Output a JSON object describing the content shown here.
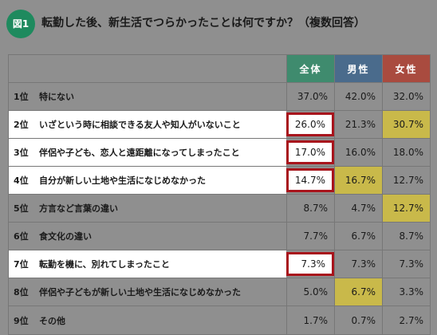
{
  "header": {
    "badge": "図1",
    "title": "転勤した後、新生活でつらかったことは何ですか？（複数回答）"
  },
  "table": {
    "columns": [
      "全体",
      "男性",
      "女性"
    ],
    "rows": [
      {
        "rank": "1位",
        "label": "特にない",
        "all": "37.0%",
        "male": "42.0%",
        "female": "32.0%"
      },
      {
        "rank": "2位",
        "label": "いざという時に相談できる友人や知人がいないこと",
        "all": "26.0%",
        "male": "21.3%",
        "female": "30.7%"
      },
      {
        "rank": "3位",
        "label": "伴侶や子ども、恋人と遠距離になってしまったこと",
        "all": "17.0%",
        "male": "16.0%",
        "female": "18.0%"
      },
      {
        "rank": "4位",
        "label": "自分が新しい土地や生活になじめなかった",
        "all": "14.7%",
        "male": "16.7%",
        "female": "12.7%"
      },
      {
        "rank": "5位",
        "label": "方言など言葉の違い",
        "all": "8.7%",
        "male": "4.7%",
        "female": "12.7%"
      },
      {
        "rank": "6位",
        "label": "食文化の違い",
        "all": "7.7%",
        "male": "6.7%",
        "female": "8.7%"
      },
      {
        "rank": "7位",
        "label": "転勤を機に、別れてしまったこと",
        "all": "7.3%",
        "male": "7.3%",
        "female": "7.3%"
      },
      {
        "rank": "8位",
        "label": "伴侶や子どもが新しい土地や生活になじめなかった",
        "all": "5.0%",
        "male": "6.7%",
        "female": "3.3%"
      },
      {
        "rank": "9位",
        "label": "その他",
        "all": "1.7%",
        "male": "0.7%",
        "female": "2.7%"
      }
    ]
  },
  "colors": {
    "highlight_box": "#a8141c",
    "highlight_fill": "#c9b94a",
    "header_all": "#3f8b6e",
    "header_male": "#4a6b8c",
    "header_female": "#a94b3f"
  }
}
